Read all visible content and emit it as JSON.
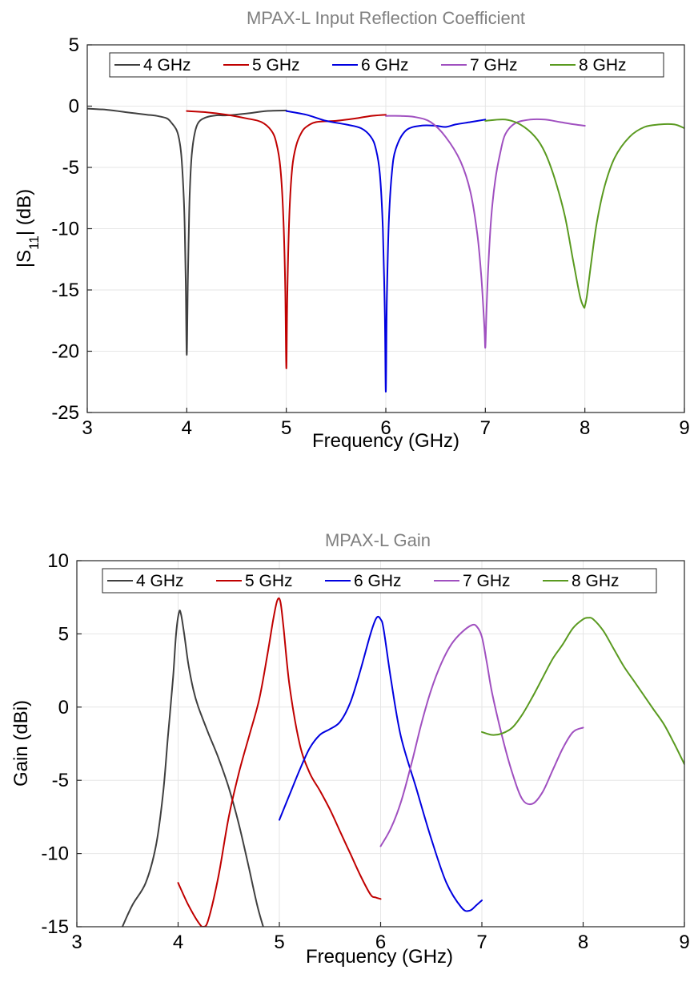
{
  "chart_data": [
    {
      "type": "line",
      "title": "MPAX-L Input Reflection Coefficient",
      "xlabel": "Frequency (GHz)",
      "ylabel": "|S11| (dB)",
      "ylabel_parts": {
        "pre": "|S",
        "sub": "11",
        "post": "| (dB)"
      },
      "xlim": [
        3,
        9
      ],
      "ylim": [
        -25,
        5
      ],
      "xticks": [
        "3",
        "4",
        "5",
        "6",
        "7",
        "8",
        "9"
      ],
      "yticks": [
        "5",
        "0",
        "-5",
        "-10",
        "-15",
        "-20",
        "-25"
      ],
      "grid": true,
      "legend": "top, horizontal",
      "series": [
        {
          "name": "4 GHz",
          "color": "#404040",
          "x": [
            3,
            3.2,
            3.4,
            3.5,
            3.6,
            3.7,
            3.8,
            3.85,
            3.9,
            3.93,
            3.95,
            3.97,
            3.98,
            3.99,
            4.0,
            4.01,
            4.02,
            4.03,
            4.05,
            4.08,
            4.12,
            4.2,
            4.3,
            4.4,
            4.6,
            4.8,
            5.0
          ],
          "y": [
            -0.2,
            -0.3,
            -0.5,
            -0.6,
            -0.7,
            -0.8,
            -1.0,
            -1.4,
            -2.0,
            -3.0,
            -4.5,
            -7.5,
            -10,
            -14.5,
            -20.3,
            -14.5,
            -10.5,
            -7.0,
            -4.0,
            -2.2,
            -1.3,
            -0.9,
            -0.75,
            -0.75,
            -0.6,
            -0.4,
            -0.35
          ]
        },
        {
          "name": "5 GHz",
          "color": "#c00000",
          "x": [
            4,
            4.2,
            4.4,
            4.6,
            4.75,
            4.85,
            4.9,
            4.94,
            4.97,
            4.99,
            5.0,
            5.01,
            5.03,
            5.06,
            5.1,
            5.15,
            5.2,
            5.3,
            5.5,
            5.7,
            5.85,
            6.0
          ],
          "y": [
            -0.4,
            -0.5,
            -0.7,
            -1.0,
            -1.3,
            -2.0,
            -3.0,
            -5.0,
            -9.0,
            -15.0,
            -21.4,
            -15.5,
            -9.0,
            -5.0,
            -3.2,
            -2.2,
            -1.7,
            -1.3,
            -1.2,
            -1.0,
            -0.8,
            -0.7
          ]
        },
        {
          "name": "6 GHz",
          "color": "#0000e0",
          "x": [
            5,
            5.2,
            5.4,
            5.6,
            5.75,
            5.85,
            5.9,
            5.94,
            5.97,
            5.99,
            6.0,
            6.01,
            6.03,
            6.06,
            6.1,
            6.2,
            6.35,
            6.5,
            6.6,
            6.7,
            6.85,
            7.0
          ],
          "y": [
            -0.4,
            -0.7,
            -1.2,
            -1.5,
            -1.8,
            -2.5,
            -3.5,
            -5.5,
            -10,
            -17,
            -23.3,
            -16,
            -9.5,
            -5.5,
            -3.5,
            -2.0,
            -1.6,
            -1.6,
            -1.7,
            -1.5,
            -1.3,
            -1.1
          ]
        },
        {
          "name": "7 GHz",
          "color": "#a050c0",
          "x": [
            6,
            6.15,
            6.3,
            6.45,
            6.6,
            6.75,
            6.85,
            6.92,
            6.96,
            6.99,
            7.0,
            7.01,
            7.03,
            7.06,
            7.1,
            7.15,
            7.2,
            7.3,
            7.45,
            7.6,
            7.75,
            7.9,
            8.0
          ],
          "y": [
            -0.8,
            -0.8,
            -0.9,
            -1.3,
            -2.5,
            -4.5,
            -7.0,
            -10.5,
            -14,
            -18,
            -19.7,
            -17,
            -13,
            -9,
            -6,
            -3.8,
            -2.3,
            -1.4,
            -1.1,
            -1.1,
            -1.3,
            -1.5,
            -1.6
          ]
        },
        {
          "name": "8 GHz",
          "color": "#5a9a20",
          "x": [
            7,
            7.2,
            7.35,
            7.5,
            7.6,
            7.7,
            7.8,
            7.88,
            7.95,
            7.99,
            8.0,
            8.02,
            8.06,
            8.12,
            8.2,
            8.3,
            8.45,
            8.6,
            8.75,
            8.9,
            9.0
          ],
          "y": [
            -1.2,
            -1.1,
            -1.5,
            -2.5,
            -3.8,
            -6.0,
            -9.0,
            -12.5,
            -15.5,
            -16.4,
            -16.3,
            -15.5,
            -13.0,
            -9.5,
            -6.5,
            -4.2,
            -2.5,
            -1.7,
            -1.5,
            -1.5,
            -1.8
          ]
        }
      ]
    },
    {
      "type": "line",
      "title": "MPAX-L Gain",
      "xlabel": "Frequency (GHz)",
      "ylabel": "Gain (dBi)",
      "xlim": [
        3,
        9
      ],
      "ylim": [
        -15,
        10
      ],
      "xticks": [
        "3",
        "4",
        "5",
        "6",
        "7",
        "8",
        "9"
      ],
      "yticks": [
        "10",
        "5",
        "0",
        "-5",
        "-10",
        "-15"
      ],
      "grid": true,
      "legend": "top, horizontal",
      "series": [
        {
          "name": "4 GHz",
          "color": "#404040",
          "x": [
            3.45,
            3.55,
            3.68,
            3.78,
            3.85,
            3.9,
            3.95,
            3.98,
            4.01,
            4.03,
            4.06,
            4.1,
            4.15,
            4.2,
            4.3,
            4.4,
            4.5,
            4.6,
            4.7,
            4.78,
            4.84
          ],
          "y": [
            -15,
            -13.5,
            -12,
            -9.5,
            -6,
            -2,
            2,
            5,
            6.5,
            6.3,
            5,
            3,
            1.2,
            0,
            -1.8,
            -3.5,
            -5.5,
            -8,
            -11,
            -13.5,
            -15
          ]
        },
        {
          "name": "5 GHz",
          "color": "#c00000",
          "x": [
            4,
            4.1,
            4.2,
            4.25,
            4.3,
            4.4,
            4.5,
            4.6,
            4.7,
            4.8,
            4.88,
            4.94,
            4.98,
            5.01,
            5.04,
            5.1,
            5.2,
            5.3,
            5.4,
            5.5,
            5.6,
            5.7,
            5.8,
            5.9,
            5.95,
            6.0
          ],
          "y": [
            -12,
            -13.5,
            -14.7,
            -15,
            -14.5,
            -11.5,
            -7.5,
            -4.5,
            -2,
            0.5,
            3.5,
            6,
            7.3,
            7.2,
            5.5,
            1.5,
            -2.5,
            -4.5,
            -5.7,
            -7,
            -8.5,
            -10,
            -11.5,
            -12.8,
            -13,
            -13.1
          ]
        },
        {
          "name": "6 GHz",
          "color": "#0000e0",
          "x": [
            5,
            5.1,
            5.2,
            5.3,
            5.4,
            5.5,
            5.6,
            5.7,
            5.8,
            5.9,
            5.96,
            6.0,
            6.03,
            6.1,
            6.2,
            6.35,
            6.5,
            6.65,
            6.8,
            6.88,
            6.95,
            7.0
          ],
          "y": [
            -7.7,
            -6,
            -4.3,
            -2.8,
            -1.9,
            -1.5,
            -1,
            0.3,
            2.5,
            5,
            6.1,
            6,
            5.3,
            2,
            -2,
            -5.5,
            -9,
            -12,
            -13.7,
            -13.9,
            -13.5,
            -13.2
          ]
        },
        {
          "name": "7 GHz",
          "color": "#a050c0",
          "x": [
            6,
            6.1,
            6.2,
            6.3,
            6.4,
            6.5,
            6.6,
            6.7,
            6.8,
            6.9,
            6.95,
            7.0,
            7.05,
            7.1,
            7.2,
            7.3,
            7.4,
            7.5,
            7.6,
            7.7,
            7.8,
            7.9,
            8.0
          ],
          "y": [
            -9.5,
            -8.3,
            -6.5,
            -4,
            -1.2,
            1.2,
            3,
            4.3,
            5.1,
            5.6,
            5.5,
            4.8,
            3,
            1,
            -2,
            -4.5,
            -6.3,
            -6.6,
            -5.8,
            -4.3,
            -2.8,
            -1.7,
            -1.4
          ]
        },
        {
          "name": "8 GHz",
          "color": "#5a9a20",
          "x": [
            7,
            7.1,
            7.2,
            7.3,
            7.4,
            7.5,
            7.6,
            7.7,
            7.8,
            7.9,
            8.0,
            8.05,
            8.1,
            8.2,
            8.3,
            8.4,
            8.5,
            8.6,
            8.7,
            8.8,
            8.9,
            9.0
          ],
          "y": [
            -1.7,
            -1.9,
            -1.8,
            -1.4,
            -0.5,
            0.7,
            2,
            3.3,
            4.3,
            5.4,
            6,
            6.1,
            6,
            5.2,
            4,
            2.8,
            1.8,
            0.8,
            -0.2,
            -1.2,
            -2.5,
            -3.9
          ]
        }
      ]
    }
  ]
}
